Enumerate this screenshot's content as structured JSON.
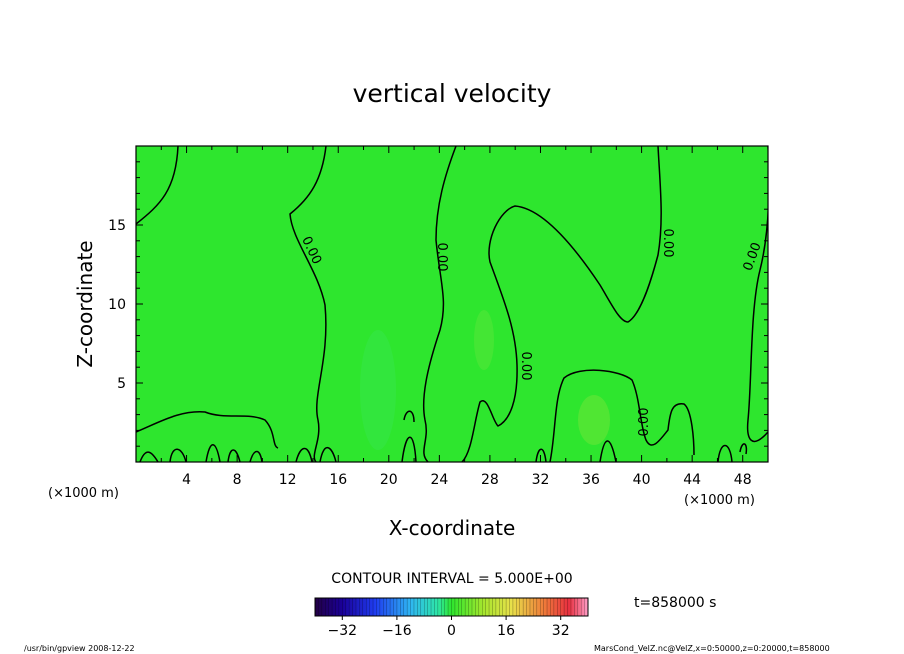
{
  "chart_data": {
    "type": "heatmap",
    "title": "vertical velocity",
    "xlabel": "X-coordinate",
    "ylabel": "Z-coordinate",
    "x_unit": "(×1000 m)",
    "y_unit": "(×1000 m)",
    "xlim": [
      0,
      50
    ],
    "ylim": [
      0,
      20
    ],
    "x_ticks": [
      "4",
      "8",
      "12",
      "16",
      "20",
      "24",
      "28",
      "32",
      "36",
      "40",
      "44",
      "48"
    ],
    "y_ticks": [
      "5",
      "10",
      "15"
    ],
    "field_color": "#2ee62e",
    "contour_color": "#000000",
    "contour_level": 0,
    "contour_labels": [
      "0.00",
      "0.00",
      "0.00",
      "0.00",
      "0.00",
      "0.00",
      "0.00"
    ],
    "contour_interval_label": "CONTOUR INTERVAL = 5.000E+00",
    "colorbar": {
      "ticks": [
        "−32",
        "−16",
        "0",
        "16",
        "32"
      ],
      "range": [
        -40,
        40
      ]
    },
    "time_label": "t=858000 s"
  },
  "footer": {
    "left": "/usr/bin/gpview  2008-12-22",
    "right": "MarsCond_VelZ.nc@VelZ,x=0:50000,z=0:20000,t=858000"
  }
}
